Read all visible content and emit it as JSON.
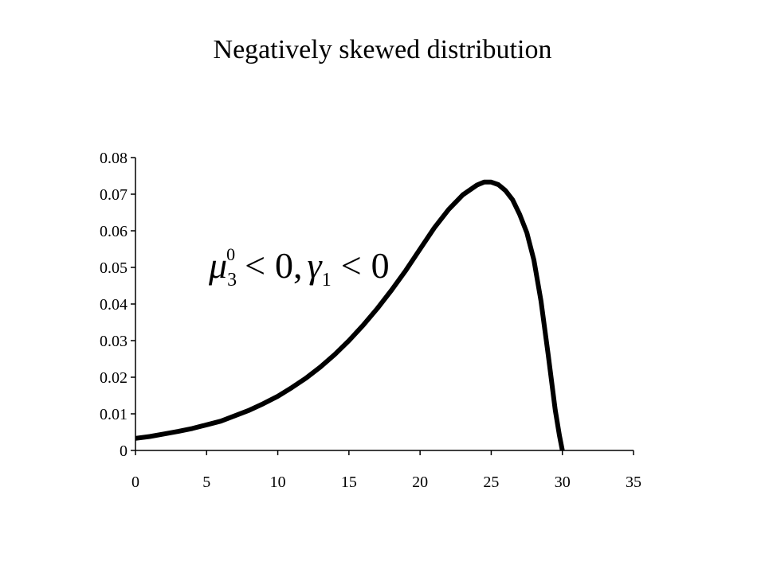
{
  "chart_data": {
    "type": "line",
    "title": "Negatively skewed distribution",
    "annotation": {
      "mu": "μ",
      "mu_sub": "3",
      "mu_sup": "0",
      "lt1": "<",
      "zero1": "0,",
      "gamma": "γ",
      "gamma_sub": "1",
      "lt2": "<",
      "zero2": "0"
    },
    "xlim": [
      0,
      35
    ],
    "ylim": [
      0,
      0.08
    ],
    "x_ticks": [
      "0",
      "5",
      "10",
      "15",
      "20",
      "25",
      "30",
      "35"
    ],
    "y_ticks": [
      "0",
      "0.01",
      "0.02",
      "0.03",
      "0.04",
      "0.05",
      "0.06",
      "0.07",
      "0.08"
    ],
    "grid": false,
    "series": [
      {
        "color": "#000000",
        "x": [
          0,
          1,
          2,
          3,
          4,
          5,
          6,
          7,
          8,
          9,
          10,
          11,
          12,
          13,
          14,
          15,
          16,
          17,
          18,
          19,
          20,
          21,
          22,
          23,
          24,
          24.5,
          25,
          25.5,
          26,
          26.5,
          27,
          27.5,
          28,
          28.5,
          29,
          29.5,
          29.8,
          30
        ],
        "y": [
          0.0033,
          0.0038,
          0.0045,
          0.0052,
          0.006,
          0.007,
          0.008,
          0.0095,
          0.011,
          0.0128,
          0.0148,
          0.0172,
          0.0198,
          0.0228,
          0.0262,
          0.03,
          0.0342,
          0.0388,
          0.0438,
          0.0492,
          0.055,
          0.0608,
          0.0658,
          0.0698,
          0.0725,
          0.0733,
          0.0733,
          0.0726,
          0.071,
          0.0685,
          0.0645,
          0.0595,
          0.052,
          0.0408,
          0.0262,
          0.011,
          0.004,
          0.0
        ]
      }
    ]
  }
}
